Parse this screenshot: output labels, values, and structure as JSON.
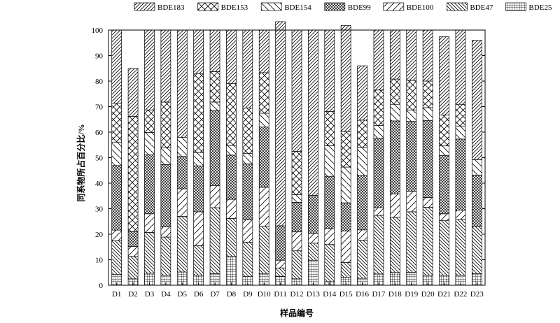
{
  "chart_data": {
    "type": "bar",
    "stacked": true,
    "title": "",
    "xlabel": "样品编号",
    "ylabel": "同系物所占百分比/%",
    "ylim": [
      0,
      100
    ],
    "yticks": [
      0,
      10,
      20,
      30,
      40,
      50,
      60,
      70,
      80,
      90,
      100
    ],
    "grid": false,
    "legend_position": "top",
    "categories": [
      "D1",
      "D2",
      "D3",
      "D4",
      "D5",
      "D6",
      "D7",
      "D8",
      "D9",
      "D10",
      "D11",
      "D12",
      "D13",
      "D14",
      "D15",
      "D16",
      "D17",
      "D18",
      "D19",
      "D20",
      "D21",
      "D22",
      "D23"
    ],
    "stack_order": [
      "BDE25",
      "BDE47",
      "BDE100",
      "BDE99",
      "BDE154",
      "BDE153",
      "BDE183"
    ],
    "series": [
      {
        "name": "BDE183",
        "pattern": "diag-right",
        "values": [
          28.7,
          18.8,
          31.3,
          28.2,
          42,
          17,
          16.3,
          21,
          30.5,
          16.7,
          80,
          47.5,
          64.8,
          31.9,
          41.6,
          21.3,
          23.5,
          19.2,
          19.7,
          20,
          30.7,
          29.1,
          46.8
        ]
      },
      {
        "name": "BDE153",
        "pattern": "crosshatch",
        "values": [
          15.2,
          45.2,
          8.8,
          18,
          0,
          31,
          11.9,
          24.2,
          17.8,
          15.9,
          0,
          17,
          0,
          13.4,
          13.9,
          10.7,
          13.9,
          9.9,
          11.6,
          10.4,
          12.1,
          8.5,
          0
        ]
      },
      {
        "name": "BDE154",
        "pattern": "diag-left-wide",
        "values": [
          9.2,
          0,
          8.8,
          6.5,
          7.5,
          5.2,
          3.4,
          3.8,
          4.1,
          5.4,
          0,
          3,
          0,
          12,
          14,
          11,
          5,
          6.5,
          4.5,
          5,
          3.7,
          5.1,
          6
        ]
      },
      {
        "name": "BDE99",
        "pattern": "dense-crosshatch",
        "values": [
          25.3,
          5.8,
          23.1,
          24.4,
          12.7,
          18,
          29.3,
          17.3,
          22,
          23.6,
          13.5,
          11.6,
          14.9,
          20.5,
          11,
          21.3,
          27.2,
          28.6,
          27.4,
          30.2,
          22.9,
          27.9,
          20.2
        ]
      },
      {
        "name": "BDE100",
        "pattern": "diag-right-wide",
        "values": [
          4.2,
          3.9,
          7.3,
          4,
          10.8,
          13.3,
          8.7,
          7.5,
          8.7,
          15.3,
          3,
          7.4,
          3.8,
          6.1,
          12.4,
          4,
          3,
          9.2,
          8,
          3.8,
          2.7,
          3.6,
          0
        ]
      },
      {
        "name": "BDE47",
        "pattern": "diag-left",
        "values": [
          13.2,
          8.8,
          16,
          15,
          21.8,
          11.5,
          25.9,
          15,
          13.5,
          18.5,
          3.3,
          11,
          6.7,
          14.7,
          5.7,
          15,
          23,
          21.6,
          23.7,
          26.6,
          21.3,
          21.9,
          18.5
        ]
      },
      {
        "name": "BDE25",
        "pattern": "grid",
        "values": [
          4.2,
          2.5,
          4.7,
          3.9,
          5.2,
          4,
          4.5,
          11.2,
          3.4,
          4.6,
          3.5,
          2.5,
          9.8,
          1.4,
          3.2,
          2.7,
          4.4,
          5,
          5.1,
          4,
          4,
          3.9,
          4.5
        ]
      }
    ]
  }
}
